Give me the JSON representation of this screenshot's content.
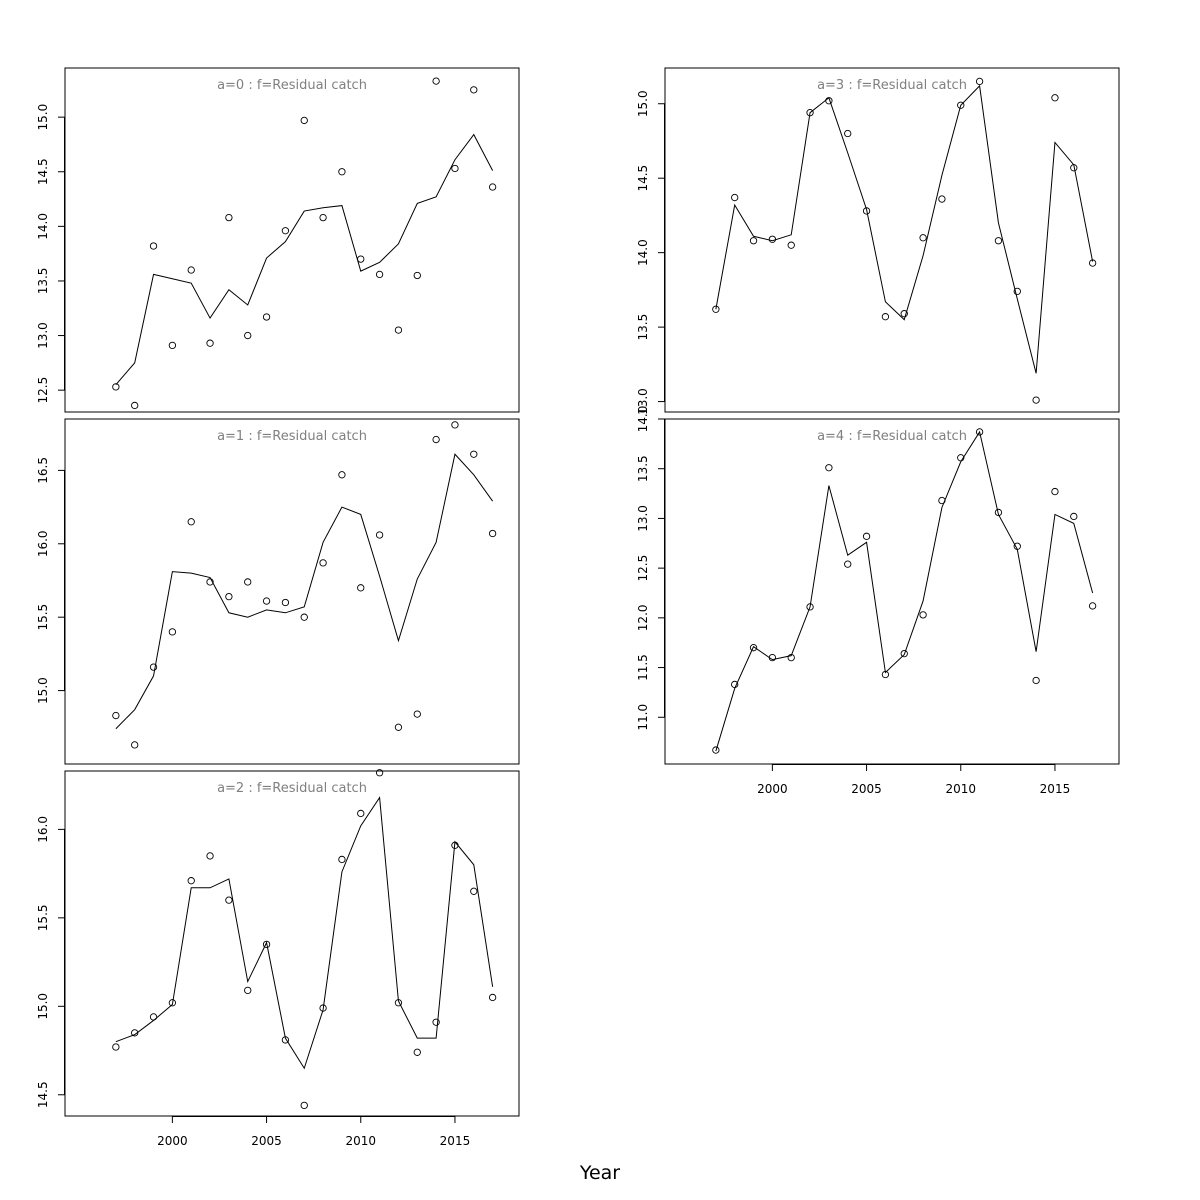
{
  "xlabel": "Year",
  "chart_data": [
    {
      "type": "line",
      "title": "a=0 : f=Residual catch",
      "x": [
        1997,
        1998,
        1999,
        2000,
        2001,
        2002,
        2003,
        2004,
        2005,
        2006,
        2007,
        2008,
        2009,
        2010,
        2011,
        2012,
        2013,
        2014,
        2015,
        2016,
        2017
      ],
      "ylim": [
        12.3,
        15.45
      ],
      "yticks": [
        12.5,
        13.0,
        13.5,
        14.0,
        14.5,
        15.0
      ],
      "ytick_labels": [
        "12.5",
        "13.0",
        "13.5",
        "14.0",
        "14.5",
        "15.0"
      ],
      "series": [
        {
          "kind": "line",
          "values": [
            12.55,
            12.75,
            13.56,
            13.52,
            13.48,
            13.16,
            13.42,
            13.28,
            13.71,
            13.86,
            14.14,
            14.17,
            14.19,
            13.59,
            13.67,
            13.84,
            14.21,
            14.27,
            14.61,
            14.84,
            14.51
          ]
        },
        {
          "kind": "points",
          "values": [
            12.53,
            12.36,
            13.82,
            12.91,
            13.6,
            12.93,
            14.08,
            13.0,
            13.17,
            13.96,
            14.97,
            14.08,
            14.5,
            13.7,
            13.56,
            13.05,
            13.55,
            15.33,
            14.53,
            15.25,
            14.36
          ]
        }
      ]
    },
    {
      "type": "line",
      "title": "a=1 : f=Residual catch",
      "x": [
        1997,
        1998,
        1999,
        2000,
        2001,
        2002,
        2003,
        2004,
        2005,
        2006,
        2007,
        2008,
        2009,
        2010,
        2011,
        2012,
        2013,
        2014,
        2015,
        2016,
        2017
      ],
      "ylim": [
        14.5,
        16.85
      ],
      "yticks": [
        15.0,
        15.5,
        16.0,
        16.5
      ],
      "ytick_labels": [
        "15.0",
        "15.5",
        "16.0",
        "16.5"
      ],
      "series": [
        {
          "kind": "line",
          "values": [
            14.74,
            14.87,
            15.1,
            15.81,
            15.8,
            15.77,
            15.53,
            15.5,
            15.55,
            15.53,
            15.57,
            16.01,
            16.25,
            16.2,
            15.78,
            15.34,
            15.76,
            16.01,
            16.61,
            16.47,
            16.29
          ]
        },
        {
          "kind": "points",
          "values": [
            14.83,
            14.63,
            15.16,
            15.4,
            16.15,
            15.74,
            15.64,
            15.74,
            15.61,
            15.6,
            15.5,
            15.87,
            16.47,
            15.7,
            16.06,
            14.75,
            14.84,
            16.71,
            16.81,
            16.61,
            16.07
          ]
        }
      ]
    },
    {
      "type": "line",
      "title": "a=2 : f=Residual catch",
      "x": [
        1997,
        1998,
        1999,
        2000,
        2001,
        2002,
        2003,
        2004,
        2005,
        2006,
        2007,
        2008,
        2009,
        2010,
        2011,
        2012,
        2013,
        2014,
        2015,
        2016,
        2017
      ],
      "ylim": [
        14.38,
        16.33
      ],
      "yticks": [
        14.5,
        15.0,
        15.5,
        16.0
      ],
      "ytick_labels": [
        "14.5",
        "15.0",
        "15.5",
        "16.0"
      ],
      "series": [
        {
          "kind": "line",
          "values": [
            14.8,
            14.84,
            14.92,
            15.01,
            15.67,
            15.67,
            15.72,
            15.14,
            15.36,
            14.82,
            14.65,
            14.98,
            15.76,
            16.02,
            16.18,
            15.03,
            14.82,
            14.82,
            15.93,
            15.8,
            15.11
          ]
        },
        {
          "kind": "points",
          "values": [
            14.77,
            14.85,
            14.94,
            15.02,
            15.71,
            15.85,
            15.6,
            15.09,
            15.35,
            14.81,
            14.44,
            14.99,
            15.83,
            16.09,
            16.32,
            15.02,
            14.74,
            14.91,
            15.91,
            15.65,
            15.05
          ]
        }
      ]
    },
    {
      "type": "line",
      "title": "a=3 : f=Residual catch",
      "x": [
        1997,
        1998,
        1999,
        2000,
        2001,
        2002,
        2003,
        2004,
        2005,
        2006,
        2007,
        2008,
        2009,
        2010,
        2011,
        2012,
        2013,
        2014,
        2015,
        2016,
        2017
      ],
      "ylim": [
        12.93,
        15.24
      ],
      "yticks": [
        13.0,
        13.5,
        14.0,
        14.5,
        15.0
      ],
      "ytick_labels": [
        "13.0",
        "13.5",
        "14.0",
        "14.5",
        "15.0"
      ],
      "series": [
        {
          "kind": "line",
          "values": [
            13.62,
            14.32,
            14.11,
            14.08,
            14.12,
            14.94,
            15.04,
            14.67,
            14.29,
            13.67,
            13.55,
            13.98,
            14.52,
            14.99,
            15.12,
            14.2,
            13.69,
            13.19,
            14.74,
            14.59,
            13.94
          ]
        },
        {
          "kind": "points",
          "values": [
            13.62,
            14.37,
            14.08,
            14.09,
            14.05,
            14.94,
            15.02,
            14.8,
            14.28,
            13.57,
            13.59,
            14.1,
            14.36,
            14.99,
            15.15,
            14.08,
            13.74,
            13.01,
            15.04,
            14.57,
            13.93
          ]
        }
      ]
    },
    {
      "type": "line",
      "title": "a=4 : f=Residual catch",
      "x": [
        1997,
        1998,
        1999,
        2000,
        2001,
        2002,
        2003,
        2004,
        2005,
        2006,
        2007,
        2008,
        2009,
        2010,
        2011,
        2012,
        2013,
        2014,
        2015,
        2016,
        2017
      ],
      "xlim": [
        1994.3,
        2018.4
      ],
      "xticks": [
        2000,
        2005,
        2010,
        2015
      ],
      "xtick_labels": [
        "2000",
        "2005",
        "2010",
        "2015"
      ],
      "ylim": [
        10.53,
        14.0
      ],
      "yticks": [
        11.0,
        11.5,
        12.0,
        12.5,
        13.0,
        13.5,
        14.0
      ],
      "ytick_labels": [
        "11.0",
        "11.5",
        "12.0",
        "12.5",
        "13.0",
        "13.5",
        "14.0"
      ],
      "series": [
        {
          "kind": "line",
          "values": [
            10.66,
            11.29,
            11.71,
            11.58,
            11.62,
            12.11,
            13.33,
            12.63,
            12.76,
            11.45,
            11.63,
            12.17,
            13.11,
            13.57,
            13.87,
            13.04,
            12.69,
            11.66,
            13.04,
            12.95,
            12.25
          ]
        },
        {
          "kind": "points",
          "values": [
            10.67,
            11.33,
            11.7,
            11.6,
            11.6,
            12.11,
            13.51,
            12.54,
            12.82,
            11.43,
            11.64,
            12.03,
            13.18,
            13.61,
            13.87,
            13.06,
            12.72,
            11.37,
            13.27,
            13.02,
            12.12
          ]
        }
      ]
    }
  ]
}
